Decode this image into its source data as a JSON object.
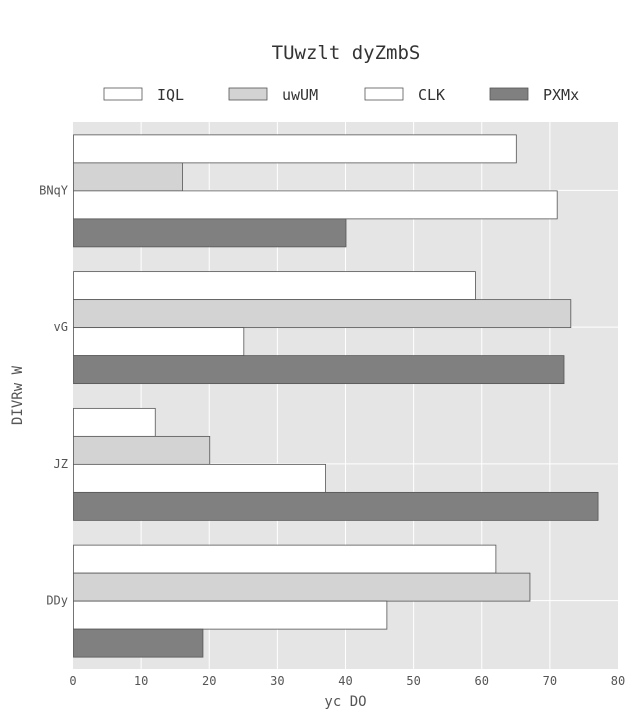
{
  "chart_data": {
    "type": "bar",
    "orientation": "horizontal",
    "title": "TUwzlt dyZmbS",
    "xlabel": "yc DO",
    "ylabel": "DIVRw W",
    "categories": [
      "BNqY",
      "vG",
      "JZ",
      "DDy"
    ],
    "series": [
      {
        "name": "IQL",
        "color": "#ffffff",
        "values": [
          65,
          59,
          12,
          62
        ]
      },
      {
        "name": "uwUM",
        "color": "#d3d3d3",
        "values": [
          16,
          73,
          20,
          67
        ]
      },
      {
        "name": "CLK",
        "color": "#ffffff",
        "values": [
          71,
          25,
          37,
          46
        ]
      },
      {
        "name": "PXMx",
        "color": "#808080",
        "values": [
          40,
          72,
          77,
          19
        ]
      }
    ],
    "xlim": [
      0,
      80
    ],
    "xticks": [
      "0",
      "10",
      "20",
      "30",
      "40",
      "50",
      "60",
      "70",
      "80"
    ],
    "grid": true,
    "legend_position": "top",
    "colors": {
      "plot_background": "#e5e5e5",
      "grid": "#ffffff",
      "bar_edge": "#555555",
      "text": "#555555"
    }
  }
}
